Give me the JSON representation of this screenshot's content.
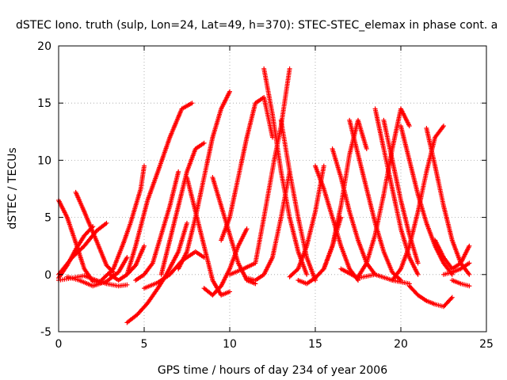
{
  "chart_data": {
    "type": "scatter",
    "title": "dSTEC Iono. truth (sulp, Lon=24, Lat=49, h=370): STEC-STEC_elemax in phase cont. a",
    "xlabel": "GPS time / hours of day 234 of year 2006",
    "ylabel": "dSTEC  / TECUs",
    "xlim": [
      0,
      25
    ],
    "ylim": [
      -5,
      20
    ],
    "x_ticks": [
      0,
      5,
      10,
      15,
      20,
      25
    ],
    "y_ticks": [
      -5,
      0,
      5,
      10,
      15,
      20
    ],
    "x_tick_labels": [
      "0",
      "5",
      "10",
      "15",
      "20",
      "25"
    ],
    "y_tick_labels": [
      "-5",
      "0",
      "5",
      "10",
      "15",
      "20"
    ],
    "grid": true,
    "marker": "+",
    "color": "#ff0000",
    "series": [
      {
        "x": [
          0.0,
          0.5,
          1.0,
          1.5,
          2.0,
          2.5
        ],
        "y": [
          6.5,
          5.0,
          2.8,
          0.5,
          -0.6,
          -0.7
        ]
      },
      {
        "x": [
          0.0,
          0.5,
          1.0,
          1.5,
          2.0
        ],
        "y": [
          -0.3,
          0.8,
          2.2,
          3.4,
          4.2
        ]
      },
      {
        "x": [
          0.0,
          0.8,
          1.5,
          2.2,
          2.8,
          3.5,
          4.0
        ],
        "y": [
          -0.5,
          -0.3,
          -0.1,
          -0.5,
          -0.8,
          -1.0,
          -0.9
        ]
      },
      {
        "x": [
          0.0,
          0.8,
          1.5,
          2.2,
          2.8
        ],
        "y": [
          0.0,
          1.5,
          2.5,
          3.8,
          4.5
        ]
      },
      {
        "x": [
          1.0,
          1.5,
          2.2,
          2.8,
          3.2
        ],
        "y": [
          7.2,
          5.5,
          3.0,
          0.8,
          0.2
        ]
      },
      {
        "x": [
          0.5,
          1.2,
          2.0,
          2.8,
          3.5,
          4.0
        ],
        "y": [
          -0.2,
          -0.5,
          -1.0,
          -0.6,
          0.2,
          1.5
        ]
      },
      {
        "x": [
          2.5,
          3.2,
          3.8,
          4.2,
          4.8,
          5.0
        ],
        "y": [
          -0.5,
          0.5,
          2.8,
          4.5,
          7.5,
          9.5
        ]
      },
      {
        "x": [
          3.0,
          3.5,
          4.0,
          4.5,
          5.0
        ],
        "y": [
          0.0,
          -0.5,
          0.0,
          0.8,
          2.5
        ]
      },
      {
        "x": [
          4.0,
          4.6,
          5.2,
          5.8,
          6.3,
          7.0,
          7.5
        ],
        "y": [
          -4.2,
          -3.5,
          -2.5,
          -1.2,
          0.0,
          2.0,
          4.5
        ]
      },
      {
        "x": [
          4.0,
          4.5,
          5.2,
          5.8,
          6.5,
          7.2,
          7.8
        ],
        "y": [
          0.0,
          2.5,
          6.5,
          9.0,
          12.0,
          14.5,
          15.0
        ]
      },
      {
        "x": [
          4.5,
          5.0,
          5.5,
          6.0,
          6.5,
          7.0
        ],
        "y": [
          -0.5,
          0.0,
          1.0,
          3.5,
          6.0,
          9.0
        ]
      },
      {
        "x": [
          5.0,
          5.8,
          6.5,
          7.2,
          8.0,
          8.5
        ],
        "y": [
          -1.2,
          -0.7,
          0.0,
          1.2,
          2.0,
          1.5
        ]
      },
      {
        "x": [
          6.0,
          6.5,
          7.0,
          7.5,
          8.0,
          8.5
        ],
        "y": [
          0.0,
          3.0,
          6.0,
          9.0,
          11.0,
          11.5
        ]
      },
      {
        "x": [
          7.0,
          7.5,
          8.0,
          8.5,
          9.0,
          9.5,
          10.0
        ],
        "y": [
          0.5,
          2.0,
          5.0,
          8.5,
          12.0,
          14.5,
          16.0
        ]
      },
      {
        "x": [
          7.5,
          8.0,
          8.5,
          9.0,
          9.5,
          10.0
        ],
        "y": [
          8.5,
          5.5,
          2.5,
          -0.5,
          -1.8,
          -1.5
        ]
      },
      {
        "x": [
          8.5,
          9.0,
          9.5,
          10.0,
          10.5,
          11.0
        ],
        "y": [
          -1.2,
          -1.8,
          -1.0,
          0.5,
          2.5,
          4.0
        ]
      },
      {
        "x": [
          9.0,
          9.5,
          10.0,
          10.5,
          11.0,
          11.5
        ],
        "y": [
          8.5,
          6.0,
          3.5,
          1.0,
          -0.5,
          -0.8
        ]
      },
      {
        "x": [
          9.5,
          10.0,
          10.5,
          11.0,
          11.5,
          12.0,
          12.5
        ],
        "y": [
          3.0,
          5.0,
          8.5,
          12.0,
          15.0,
          15.5,
          12.0
        ]
      },
      {
        "x": [
          10.0,
          10.8,
          11.5,
          12.0,
          12.6,
          13.0,
          13.5
        ],
        "y": [
          0.0,
          0.5,
          1.0,
          5.0,
          10.0,
          13.0,
          18.0
        ]
      },
      {
        "x": [
          11.0,
          11.5,
          12.0,
          12.5,
          13.0,
          13.5
        ],
        "y": [
          -0.3,
          -0.5,
          0.0,
          1.5,
          5.0,
          9.0
        ]
      },
      {
        "x": [
          12.0,
          12.5,
          13.0,
          13.5,
          14.0,
          14.5
        ],
        "y": [
          18.0,
          14.0,
          9.0,
          5.0,
          2.0,
          0.0
        ]
      },
      {
        "x": [
          13.0,
          13.5,
          14.0,
          14.5,
          15.0
        ],
        "y": [
          13.5,
          9.0,
          5.0,
          1.5,
          -0.5
        ]
      },
      {
        "x": [
          13.5,
          14.0,
          14.5,
          15.0,
          15.5
        ],
        "y": [
          -0.2,
          0.5,
          2.5,
          5.5,
          9.5
        ]
      },
      {
        "x": [
          14.0,
          14.5,
          15.0,
          15.5,
          16.0,
          16.5
        ],
        "y": [
          -0.5,
          -0.8,
          -0.3,
          0.5,
          2.5,
          5.0
        ]
      },
      {
        "x": [
          15.0,
          15.5,
          16.0,
          16.5,
          17.0,
          17.5
        ],
        "y": [
          9.5,
          7.5,
          5.0,
          2.5,
          0.5,
          -0.5
        ]
      },
      {
        "x": [
          15.5,
          16.0,
          16.5,
          17.0,
          17.5,
          18.0
        ],
        "y": [
          0.5,
          2.5,
          6.0,
          10.5,
          13.5,
          11.0
        ]
      },
      {
        "x": [
          16.0,
          16.5,
          17.0,
          17.5,
          18.0,
          18.5
        ],
        "y": [
          11.0,
          8.5,
          5.5,
          3.0,
          1.0,
          0.0
        ]
      },
      {
        "x": [
          16.5,
          17.5,
          18.5,
          19.5,
          20.5
        ],
        "y": [
          0.5,
          -0.3,
          0.0,
          -0.5,
          -0.8
        ]
      },
      {
        "x": [
          17.0,
          17.5,
          18.0,
          18.5,
          19.0,
          19.5,
          20.0
        ],
        "y": [
          13.5,
          10.5,
          7.5,
          4.5,
          2.0,
          0.2,
          -0.5
        ]
      },
      {
        "x": [
          17.5,
          18.0,
          18.5,
          19.0,
          19.5,
          20.0,
          20.5
        ],
        "y": [
          -0.2,
          1.0,
          3.5,
          7.0,
          11.0,
          14.5,
          13.0
        ]
      },
      {
        "x": [
          18.5,
          19.0,
          19.5,
          20.0,
          20.5,
          21.0
        ],
        "y": [
          14.5,
          11.0,
          7.5,
          4.0,
          1.5,
          0.0
        ]
      },
      {
        "x": [
          19.0,
          19.5,
          20.0,
          20.5,
          21.0
        ],
        "y": [
          13.5,
          10.0,
          6.5,
          3.5,
          1.0
        ]
      },
      {
        "x": [
          19.5,
          20.0,
          20.5,
          21.0,
          21.5,
          22.0,
          22.5
        ],
        "y": [
          -0.5,
          0.5,
          2.5,
          5.5,
          9.0,
          12.0,
          13.0
        ]
      },
      {
        "x": [
          20.0,
          20.5,
          21.0,
          21.5,
          22.0,
          22.5,
          23.0
        ],
        "y": [
          13.0,
          10.0,
          7.0,
          4.5,
          2.5,
          1.0,
          0.0
        ]
      },
      {
        "x": [
          20.5,
          21.0,
          21.5,
          22.0,
          22.5,
          23.0
        ],
        "y": [
          -1.0,
          -1.8,
          -2.3,
          -2.6,
          -2.8,
          -2.0
        ]
      },
      {
        "x": [
          21.5,
          22.0,
          22.5,
          23.0,
          23.5,
          24.0
        ],
        "y": [
          12.8,
          9.5,
          6.0,
          3.0,
          1.0,
          0.0
        ]
      },
      {
        "x": [
          22.0,
          22.5,
          23.0,
          23.5,
          24.0
        ],
        "y": [
          3.0,
          1.5,
          0.5,
          1.0,
          2.5
        ]
      },
      {
        "x": [
          22.5,
          23.0,
          23.5,
          24.0
        ],
        "y": [
          0.0,
          0.2,
          0.5,
          1.0
        ]
      },
      {
        "x": [
          23.0,
          23.5,
          24.0
        ],
        "y": [
          -0.5,
          -0.8,
          -1.0
        ]
      }
    ]
  }
}
